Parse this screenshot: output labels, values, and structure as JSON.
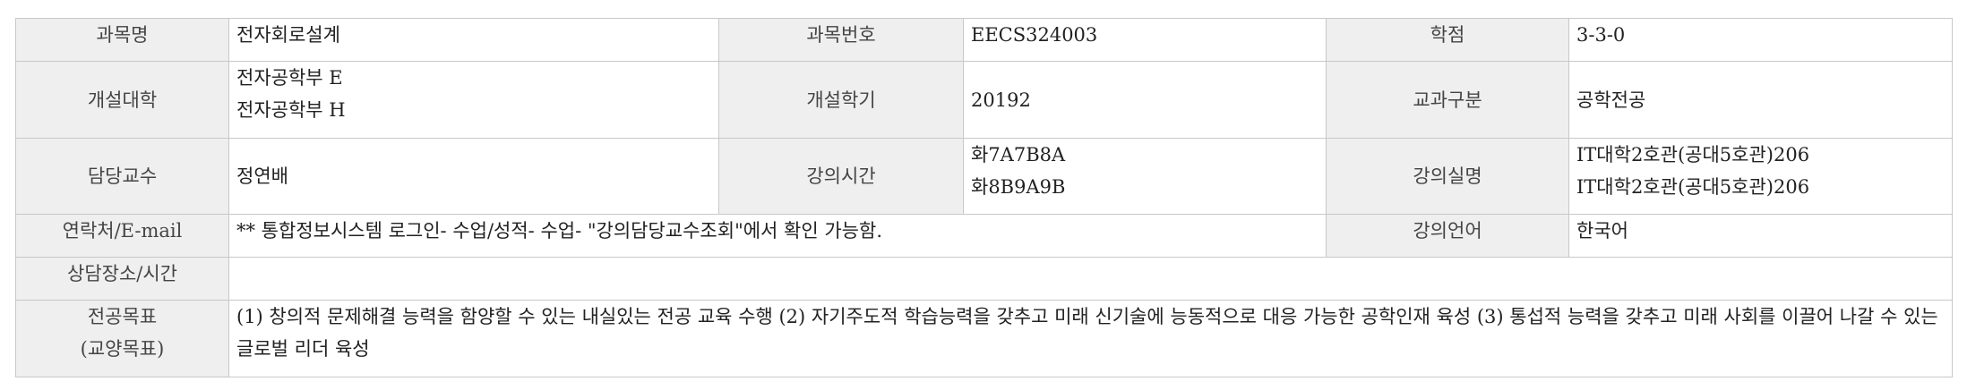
{
  "rows": {
    "course_name": {
      "label": "과목명",
      "value": "전자회로설계"
    },
    "course_number": {
      "label": "과목번호",
      "value": "EECS324003"
    },
    "credits": {
      "label": "학점",
      "value": "3-3-0"
    },
    "college": {
      "label": "개설대학",
      "values": [
        "전자공학부 E",
        "전자공학부 H"
      ]
    },
    "semester": {
      "label": "개설학기",
      "value": "20192"
    },
    "category": {
      "label": "교과구분",
      "value": "공학전공"
    },
    "professor": {
      "label": "담당교수",
      "value": "정연배"
    },
    "lecture_time": {
      "label": "강의시간",
      "values": [
        "화7A7B8A",
        "화8B9A9B"
      ]
    },
    "lecture_room": {
      "label": "강의실명",
      "values": [
        "IT대학2호관(공대5호관)206",
        "IT대학2호관(공대5호관)206"
      ]
    },
    "contact": {
      "label": "연락처/E-mail",
      "value": "** 통합정보시스템 로그인- 수업/성적- 수업- \"강의담당교수조회\"에서 확인 가능함."
    },
    "language": {
      "label": "강의언어",
      "value": "한국어"
    },
    "consult": {
      "label": "상담장소/시간",
      "value": ""
    },
    "goals": {
      "label_lines": [
        "전공목표",
        "(교양목표)"
      ],
      "value": "(1) 창의적 문제해결 능력을 함양할 수 있는 내실있는 전공 교육 수행 (2) 자기주도적 학습능력을 갖추고 미래 신기술에 능동적으로 대응 가능한 공학인재 육성 (3) 통섭적 능력을 갖추고 미래 사회를 이끌어 나갈 수 있는 글로벌 리더 육성"
    }
  }
}
